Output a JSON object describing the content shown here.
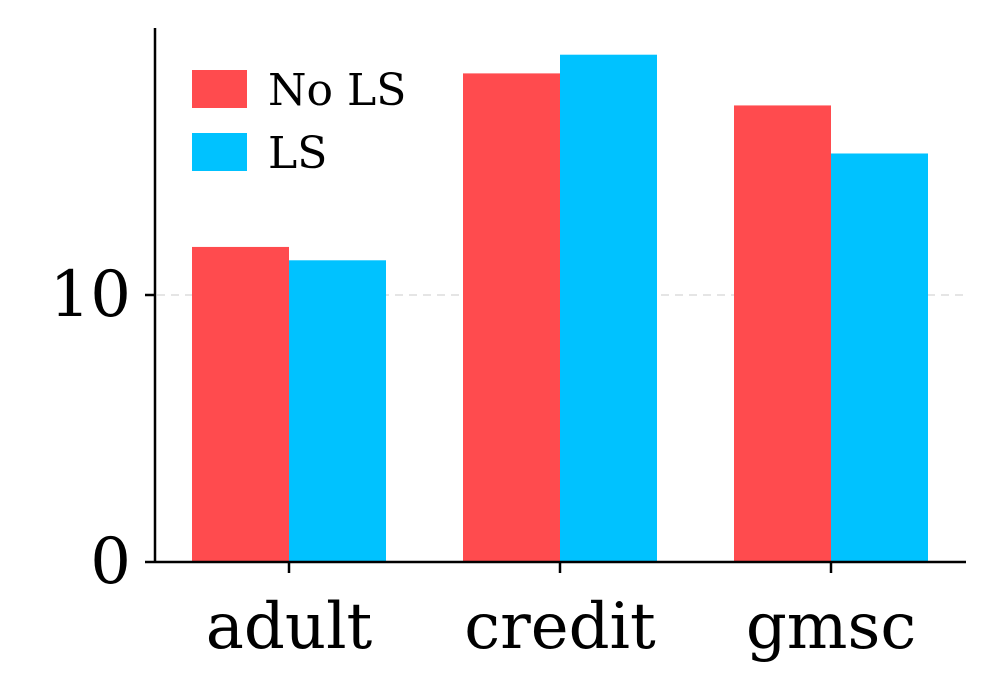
{
  "chart_data": {
    "type": "bar",
    "categories": [
      "adult",
      "credit",
      "gmsc"
    ],
    "series": [
      {
        "name": "No LS",
        "values": [
          11.8,
          18.3,
          17.1
        ]
      },
      {
        "name": "LS",
        "values": [
          11.3,
          19.0,
          15.3
        ]
      }
    ],
    "ylim": [
      0,
      20
    ],
    "yticks": [
      0,
      10
    ],
    "ytick_labels": [
      "0",
      "10"
    ],
    "grid": "horizontal dashed at y=10",
    "legend": "top-left"
  },
  "colors": {
    "No LS": "#ff4b4e",
    "LS": "#00c2ff",
    "grid": "#e5e5e5",
    "axis": "#000000"
  }
}
